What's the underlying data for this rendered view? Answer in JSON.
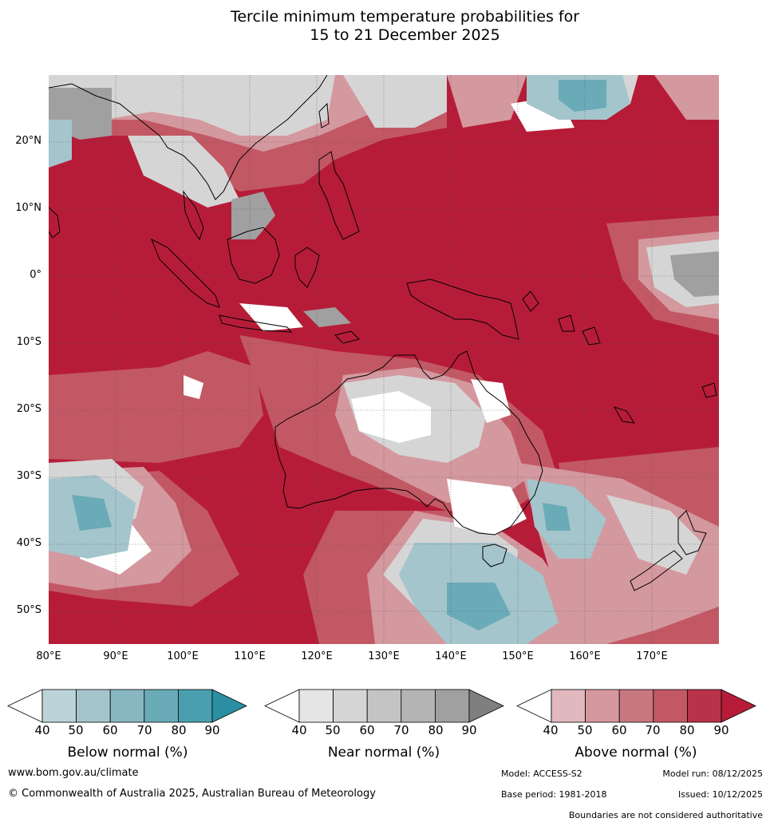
{
  "title": {
    "line1": "Tercile minimum temperature probabilities for",
    "line2": "15 to 21 December 2025"
  },
  "map": {
    "lon_range": [
      80,
      180
    ],
    "lat_range": [
      -55,
      30
    ],
    "lat_labels": [
      "20°N",
      "10°N",
      "0°",
      "10°S",
      "20°S",
      "30°S",
      "40°S",
      "50°S"
    ],
    "lon_labels": [
      "80°E",
      "90°E",
      "100°E",
      "110°E",
      "120°E",
      "130°E",
      "140°E",
      "150°E",
      "160°E",
      "170°E"
    ],
    "background_color": "#b61c38"
  },
  "legends": [
    {
      "title": "Below normal (%)",
      "ticks": [
        "40",
        "50",
        "60",
        "70",
        "80",
        "90"
      ],
      "colors": [
        "#ffffff",
        "#bcd3d9",
        "#a4c5cb",
        "#88b7c2",
        "#6aabb8",
        "#4a9fae",
        "#2a8fa0"
      ]
    },
    {
      "title": "Near normal (%)",
      "ticks": [
        "40",
        "50",
        "60",
        "70",
        "80",
        "90"
      ],
      "colors": [
        "#ffffff",
        "#e5e5e5",
        "#d5d5d5",
        "#c4c4c4",
        "#b4b4b4",
        "#a0a0a0",
        "#7f7f7f"
      ]
    },
    {
      "title": "Above normal (%)",
      "ticks": [
        "40",
        "50",
        "60",
        "70",
        "80",
        "90"
      ],
      "colors": [
        "#ffffff",
        "#e0b8be",
        "#d4989f",
        "#c97880",
        "#c25864",
        "#b8334a",
        "#b61c38"
      ]
    }
  ],
  "footer": {
    "website": "www.bom.gov.au/climate",
    "copyright": "© Commonwealth of Australia 2025, Australian Bureau of Meteorology",
    "model": "Model: ACCESS-S2",
    "model_run": "Model run: 08/12/2025",
    "base_period": "Base period: 1981-2018",
    "issued": "Issued: 10/12/2025",
    "disclaimer": "Boundaries are not considered authoritative"
  }
}
